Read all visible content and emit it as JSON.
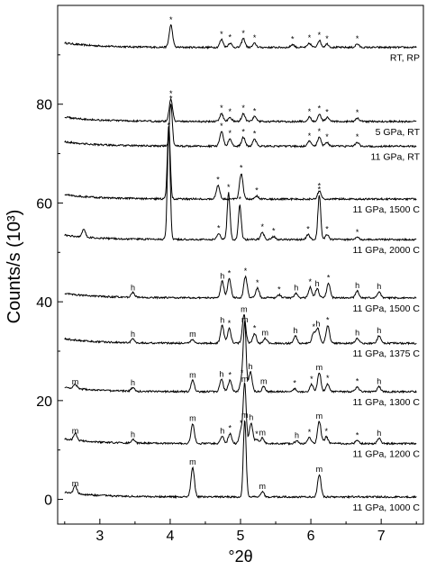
{
  "chart_data": {
    "type": "line",
    "xlabel": "°2θ",
    "ylabel": "Counts/s (10³)",
    "xlim": [
      2.4,
      7.6
    ],
    "ylim": [
      -5,
      100
    ],
    "x_ticks": [
      3,
      4,
      5,
      6,
      7
    ],
    "y_ticks": [
      0,
      20,
      40,
      60,
      80
    ],
    "grid": false,
    "series": [
      {
        "name": "RT, RP",
        "baseline": 91.5,
        "peaks": [
          [
            4.01,
            4.5,
            "*"
          ],
          [
            4.73,
            1.6,
            "*"
          ],
          [
            4.85,
            0.9,
            "*"
          ],
          [
            5.04,
            1.8,
            "*"
          ],
          [
            5.2,
            0.8,
            "*"
          ],
          [
            5.74,
            0.6,
            "*"
          ],
          [
            5.98,
            0.8,
            "*"
          ],
          [
            6.12,
            1.4,
            "*"
          ],
          [
            6.23,
            0.7,
            "*"
          ],
          [
            6.66,
            0.7,
            "*"
          ]
        ]
      },
      {
        "name": "5 GPa, RT",
        "baseline": 76.5,
        "peaks": [
          [
            4.01,
            4.5,
            "*"
          ],
          [
            4.73,
            1.6,
            "*"
          ],
          [
            4.85,
            0.9,
            "*"
          ],
          [
            5.04,
            1.6,
            "*"
          ],
          [
            5.2,
            1.0,
            "*"
          ],
          [
            5.98,
            0.9,
            "*"
          ],
          [
            6.12,
            1.5,
            "*"
          ],
          [
            6.23,
            0.8,
            "*"
          ],
          [
            6.66,
            0.7,
            "*"
          ]
        ]
      },
      {
        "name": "11 GPa, RT",
        "baseline": 71.5,
        "peaks": [
          [
            4.01,
            8.5,
            "*"
          ],
          [
            4.73,
            3.0,
            "*"
          ],
          [
            4.85,
            1.5,
            "*"
          ],
          [
            5.04,
            1.8,
            "*"
          ],
          [
            5.2,
            1.4,
            "*"
          ],
          [
            5.98,
            1.0,
            "*"
          ],
          [
            6.12,
            1.9,
            "*"
          ],
          [
            6.23,
            0.8,
            "*"
          ],
          [
            6.66,
            0.8,
            "*"
          ]
        ]
      },
      {
        "name": "11 GPa, 1500 C",
        "baseline": 60.8,
        "peaks": [
          [
            3.98,
            15.0,
            ""
          ],
          [
            4.68,
            2.8,
            "*"
          ],
          [
            5.01,
            5.2,
            "*"
          ],
          [
            5.23,
            0.6,
            "*"
          ],
          [
            6.12,
            1.6,
            "*"
          ]
        ]
      },
      {
        "name": "11 GPa, 2000 C",
        "baseline": 52.6,
        "peaks": [
          [
            2.77,
            1.6,
            ""
          ],
          [
            3.98,
            22.0,
            "*"
          ],
          [
            4.69,
            1.2,
            "*"
          ],
          [
            4.83,
            9.5,
            "*"
          ],
          [
            4.99,
            7.0,
            "*"
          ],
          [
            5.31,
            1.5,
            "*"
          ],
          [
            5.47,
            0.6,
            "*"
          ],
          [
            5.96,
            1.0,
            "*"
          ],
          [
            6.12,
            9.0,
            "*"
          ],
          [
            6.23,
            1.0,
            "*"
          ],
          [
            6.66,
            0.4,
            "*"
          ]
        ]
      },
      {
        "name": "11 GPa, 1500 C",
        "baseline": 40.8,
        "peaks": [
          [
            3.47,
            1.0,
            "h"
          ],
          [
            4.74,
            3.3,
            "h"
          ],
          [
            4.84,
            3.9,
            "*"
          ],
          [
            5.07,
            4.3,
            "*"
          ],
          [
            5.24,
            2.0,
            "*"
          ],
          [
            5.55,
            0.6,
            "*"
          ],
          [
            5.79,
            1.0,
            "h"
          ],
          [
            5.99,
            2.1,
            "*"
          ],
          [
            6.09,
            1.8,
            "h"
          ],
          [
            6.25,
            3.0,
            "*"
          ],
          [
            6.66,
            1.4,
            "h"
          ],
          [
            6.97,
            1.2,
            "h"
          ]
        ]
      },
      {
        "name": "11 GPa, 1375 C",
        "baseline": 31.6,
        "peaks": [
          [
            3.47,
            0.8,
            "h"
          ],
          [
            4.32,
            0.8,
            "m"
          ],
          [
            4.74,
            3.6,
            "h"
          ],
          [
            4.84,
            3.0,
            "*"
          ],
          [
            5.05,
            5.8,
            "m"
          ],
          [
            5.2,
            2.0,
            "*"
          ],
          [
            5.35,
            1.0,
            "m"
          ],
          [
            5.78,
            1.5,
            "h"
          ],
          [
            6.04,
            2.2,
            "*"
          ],
          [
            6.1,
            2.9,
            "h"
          ],
          [
            6.24,
            3.6,
            "*"
          ],
          [
            6.66,
            1.0,
            "h"
          ],
          [
            6.97,
            1.5,
            "h"
          ]
        ]
      },
      {
        "name": "11 GPa, 1300 C",
        "baseline": 21.8,
        "peaks": [
          [
            2.65,
            0.9,
            "m"
          ],
          [
            3.47,
            0.7,
            "h"
          ],
          [
            4.32,
            2.3,
            "m"
          ],
          [
            4.73,
            2.5,
            "h"
          ],
          [
            4.85,
            2.3,
            "*"
          ],
          [
            5.02,
            2.7,
            "*"
          ],
          [
            5.06,
            13.5,
            "m"
          ],
          [
            5.14,
            4.0,
            "h"
          ],
          [
            5.33,
            1.0,
            "m"
          ],
          [
            5.77,
            0.6,
            "*"
          ],
          [
            6.01,
            1.5,
            "*"
          ],
          [
            6.12,
            3.8,
            "m"
          ],
          [
            6.24,
            1.6,
            "*"
          ],
          [
            6.66,
            1.0,
            "*"
          ],
          [
            6.97,
            1.0,
            "h"
          ]
        ]
      },
      {
        "name": "11 GPa, 1200 C",
        "baseline": 11.3,
        "peaks": [
          [
            2.65,
            1.5,
            "m"
          ],
          [
            3.47,
            0.7,
            "h"
          ],
          [
            4.32,
            4.0,
            "m"
          ],
          [
            4.74,
            1.5,
            "h"
          ],
          [
            4.85,
            2.0,
            "*"
          ],
          [
            5.01,
            3.0,
            "*"
          ],
          [
            5.06,
            12.0,
            "m"
          ],
          [
            5.15,
            4.2,
            "h"
          ],
          [
            5.23,
            0.8,
            "*"
          ],
          [
            5.31,
            1.1,
            "m"
          ],
          [
            5.8,
            0.6,
            "h"
          ],
          [
            5.98,
            1.2,
            "*"
          ],
          [
            6.12,
            4.5,
            "m"
          ],
          [
            6.22,
            1.4,
            "*"
          ],
          [
            6.66,
            0.6,
            "*"
          ],
          [
            6.97,
            1.0,
            "h"
          ]
        ]
      },
      {
        "name": "11 GPa, 1000 C",
        "baseline": 0.5,
        "peaks": [
          [
            2.65,
            1.6,
            "m"
          ],
          [
            4.32,
            6.0,
            "m"
          ],
          [
            5.06,
            15.5,
            "m"
          ],
          [
            5.31,
            1.1,
            "m"
          ],
          [
            6.12,
            4.5,
            "m"
          ]
        ]
      }
    ]
  }
}
